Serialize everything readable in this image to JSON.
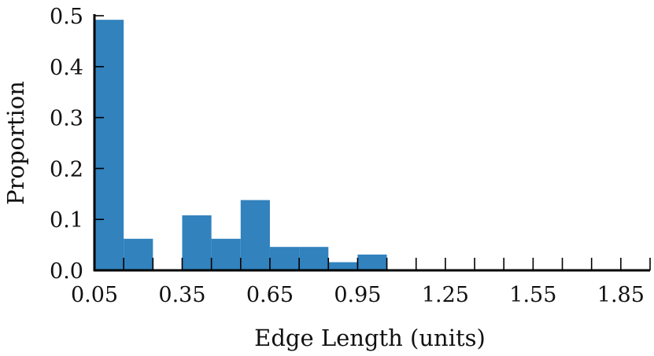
{
  "chart_data": {
    "type": "bar",
    "x_bin_starts": [
      0.05,
      0.15,
      0.25,
      0.35,
      0.45,
      0.55,
      0.65,
      0.75,
      0.85,
      0.95,
      1.05,
      1.15,
      1.25,
      1.35,
      1.45,
      1.55,
      1.65,
      1.75,
      1.85
    ],
    "bin_width": 0.1,
    "values": [
      0.492,
      0.062,
      0.0,
      0.108,
      0.062,
      0.138,
      0.046,
      0.046,
      0.016,
      0.031,
      0.0,
      0.0,
      0.0,
      0.0,
      0.0,
      0.0,
      0.0,
      0.0,
      0.0
    ],
    "x_tick_labels": [
      "0.05",
      "0.35",
      "0.65",
      "0.95",
      "1.25",
      "1.55",
      "1.85"
    ],
    "y_tick_labels": [
      "0.0",
      "0.1",
      "0.2",
      "0.3",
      "0.4",
      "0.5"
    ],
    "xlabel": "Edge Length (units)",
    "ylabel": "Proportion",
    "xlim": [
      0.05,
      1.95
    ],
    "ylim": [
      0,
      0.5
    ],
    "bar_color": "#3182bd",
    "grid": false
  }
}
